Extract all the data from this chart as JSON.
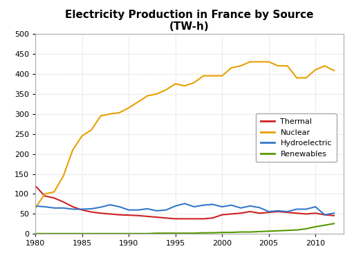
{
  "title": "Electricity Production in France by Source\n(TW-h)",
  "years": [
    1980,
    1981,
    1982,
    1983,
    1984,
    1985,
    1986,
    1987,
    1988,
    1989,
    1990,
    1991,
    1992,
    1993,
    1994,
    1995,
    1996,
    1997,
    1998,
    1999,
    2000,
    2001,
    2002,
    2003,
    2004,
    2005,
    2006,
    2007,
    2008,
    2009,
    2010,
    2011,
    2012
  ],
  "thermal": [
    120,
    95,
    90,
    80,
    68,
    60,
    55,
    52,
    50,
    48,
    47,
    46,
    44,
    42,
    40,
    38,
    38,
    38,
    38,
    40,
    48,
    50,
    52,
    56,
    52,
    54,
    56,
    54,
    52,
    50,
    52,
    48,
    46
  ],
  "nuclear": [
    65,
    100,
    105,
    145,
    210,
    245,
    260,
    295,
    300,
    303,
    315,
    330,
    345,
    350,
    360,
    375,
    370,
    378,
    395,
    395,
    395,
    415,
    420,
    430,
    430,
    430,
    420,
    420,
    390,
    390,
    410,
    420,
    408
  ],
  "hydroelectric": [
    70,
    68,
    65,
    65,
    62,
    62,
    63,
    67,
    73,
    68,
    60,
    60,
    63,
    58,
    60,
    70,
    76,
    68,
    72,
    74,
    68,
    72,
    65,
    70,
    66,
    56,
    58,
    56,
    62,
    62,
    68,
    48,
    52
  ],
  "renewables": [
    1,
    1,
    1,
    1,
    1,
    1,
    1,
    1,
    1,
    1,
    1,
    1,
    1,
    2,
    2,
    2,
    2,
    2,
    3,
    3,
    4,
    4,
    5,
    5,
    6,
    7,
    8,
    9,
    10,
    13,
    18,
    22,
    26
  ],
  "colors": {
    "thermal": "#cc2222",
    "nuclear": "#e8a000",
    "hydroelectric": "#3377cc",
    "renewables": "#559900"
  },
  "legend_labels": [
    "Thermal",
    "Nuclear",
    "Hydroelectric",
    "Renewables"
  ],
  "ylim": [
    0,
    500
  ],
  "yticks": [
    0,
    50,
    100,
    150,
    200,
    250,
    300,
    350,
    400,
    450,
    500
  ],
  "xlim": [
    1980,
    2013
  ],
  "xticks": [
    1980,
    1985,
    1990,
    1995,
    2000,
    2005,
    2010
  ],
  "bg_color": "#ffffff",
  "grid_color": "#cccccc",
  "title_fontsize": 11,
  "tick_fontsize": 8,
  "legend_fontsize": 8,
  "linewidth": 1.5
}
